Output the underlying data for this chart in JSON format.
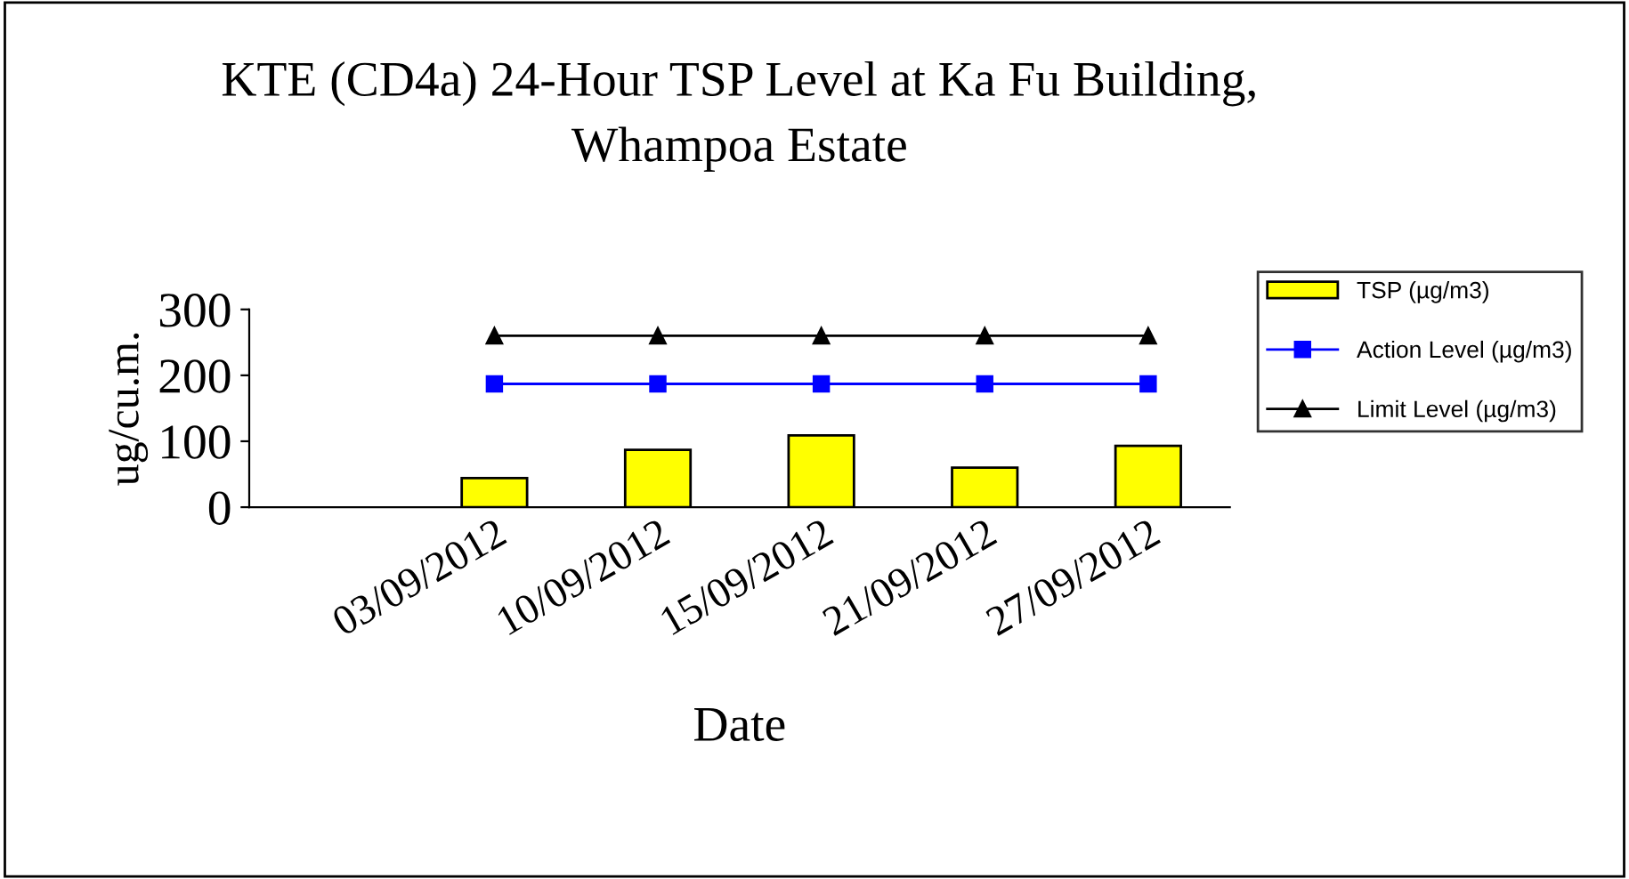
{
  "chart_data": {
    "type": "bar",
    "title": "KTE (CD4a) 24-Hour TSP Level at Ka Fu Building,\nWhampoa Estate",
    "xlabel": "Date",
    "ylabel": "ug/cu.m.",
    "categories": [
      null,
      "03/09/2012",
      "10/09/2012",
      "15/09/2012",
      "21/09/2012",
      "27/09/2012"
    ],
    "series": [
      {
        "name": "TSP (µg/m3)",
        "color": "#ffff00",
        "values": [
          null,
          44,
          87,
          109,
          60,
          93
        ]
      },
      {
        "name": "Action Level (µg/m3)",
        "type": "line",
        "color": "#0000ff",
        "marker": "square",
        "values": [
          null,
          187,
          187,
          187,
          187,
          187
        ]
      },
      {
        "name": "Limit Level (µg/m3)",
        "type": "line",
        "color": "#000000",
        "marker": "triangle",
        "values": [
          null,
          260,
          260,
          260,
          260,
          260
        ]
      }
    ],
    "ylim": [
      0,
      300
    ],
    "yticks": [
      0,
      100,
      200,
      300
    ],
    "grid": false,
    "legend": "right",
    "line_style": "solid"
  }
}
